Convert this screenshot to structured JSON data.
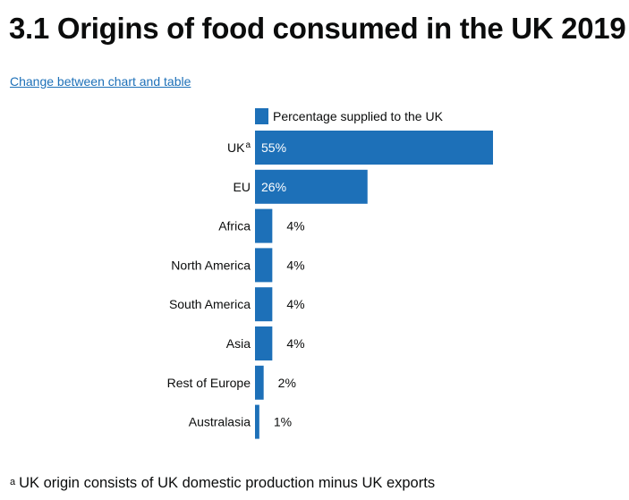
{
  "page": {
    "title": "3.1 Origins of food consumed in the UK 2019",
    "toggle_link": "Change between chart and table",
    "footnote_marker": "a",
    "footnote": "UK origin consists of UK domestic production minus UK exports"
  },
  "chart_data": {
    "type": "bar",
    "orientation": "horizontal",
    "categories": [
      "UK",
      "EU",
      "Africa",
      "North America",
      "South America",
      "Asia",
      "Rest of Europe",
      "Australasia"
    ],
    "category_superscripts": [
      "a",
      "",
      "",
      "",
      "",
      "",
      "",
      ""
    ],
    "series": [
      {
        "name": "Percentage supplied to the UK",
        "values": [
          55,
          26,
          4,
          4,
          4,
          4,
          2,
          1
        ],
        "labels": [
          "55%",
          "26%",
          "4%",
          "4%",
          "4%",
          "4%",
          "2%",
          "1%"
        ],
        "color": "#1d70b8"
      }
    ],
    "xlim": [
      0,
      100
    ],
    "grid": false,
    "legend_position": "top"
  }
}
